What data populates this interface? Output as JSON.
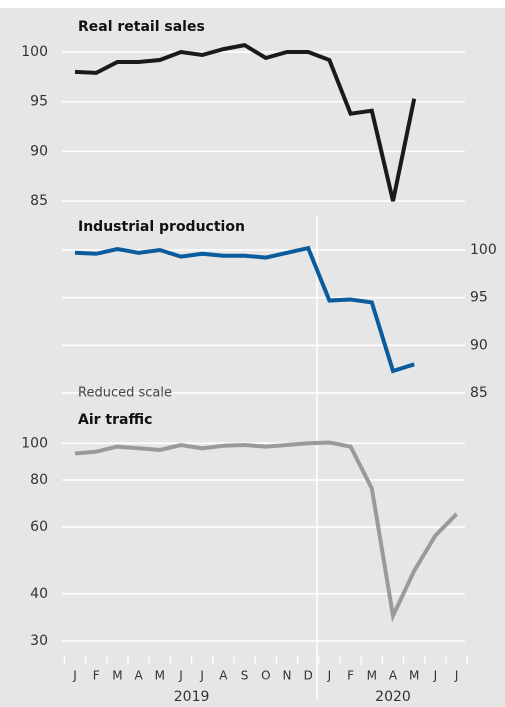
{
  "chart_data": [
    {
      "type": "line",
      "title": "Real retail sales",
      "color": "#1a1a1a",
      "values": [
        98,
        97.9,
        99,
        99,
        99.2,
        100,
        99.7,
        100.3,
        100.7,
        99.4,
        100,
        100,
        99.2,
        93.8,
        94.1,
        85,
        95.3,
        null,
        null
      ],
      "ylim": [
        83.5,
        104
      ],
      "yticks": [
        85,
        90,
        95,
        100
      ],
      "yaxis_side": "left",
      "grid": true,
      "log_scale": false
    },
    {
      "type": "line",
      "title": "Industrial production",
      "color": "#0b5c9e",
      "values": [
        99.7,
        99.6,
        100.1,
        99.7,
        100,
        99.3,
        99.6,
        99.4,
        99.4,
        99.2,
        99.7,
        100.2,
        94.7,
        94.8,
        94.5,
        87.3,
        88,
        null,
        null
      ],
      "ylim": [
        83,
        103.5
      ],
      "yticks": [
        85,
        90,
        95,
        100
      ],
      "yaxis_side": "right",
      "grid": true,
      "log_scale": false
    },
    {
      "type": "line",
      "title": "Air traffic",
      "annotation": "Reduced scale",
      "color": "#9a9a9a",
      "values": [
        94,
        95,
        98,
        97,
        96,
        99,
        97,
        98.5,
        99,
        98,
        99,
        100,
        100.5,
        98,
        76,
        35,
        46,
        57,
        65
      ],
      "ylim": [
        28.4,
        121
      ],
      "yticks": [
        30,
        40,
        60,
        80,
        100
      ],
      "yaxis_side": "left",
      "grid": true,
      "log_scale": true
    }
  ],
  "x_axis": {
    "categories": [
      "J",
      "F",
      "M",
      "A",
      "M",
      "J",
      "J",
      "A",
      "S",
      "O",
      "N",
      "D",
      "J",
      "F",
      "M",
      "A",
      "M",
      "J",
      "J"
    ],
    "years": [
      "2019",
      "2020"
    ]
  }
}
